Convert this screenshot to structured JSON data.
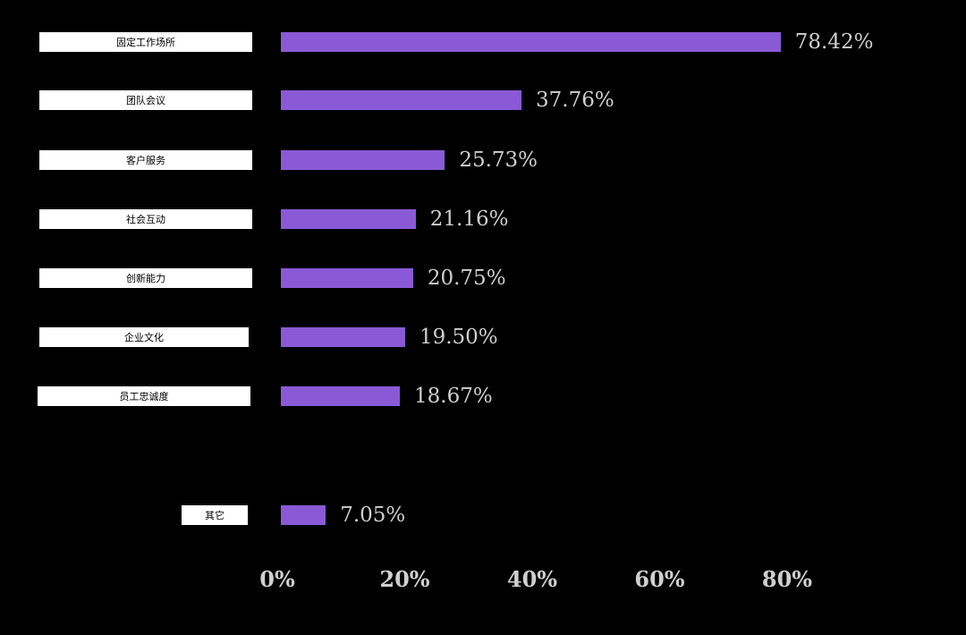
{
  "chart_data": {
    "type": "bar",
    "orientation": "horizontal",
    "categories": [
      "固定工作场所",
      "团队会议",
      "客户服务",
      "社会互动",
      "创新能力",
      "企业文化",
      "员工忠诚度",
      "其它"
    ],
    "values": [
      78.42,
      37.76,
      25.73,
      21.16,
      20.75,
      19.5,
      18.67,
      7.05
    ],
    "value_labels": [
      "78.42%",
      "37.76%",
      "25.73%",
      "21.16%",
      "20.75%",
      "19.50%",
      "18.67%",
      "7.05%"
    ],
    "x_ticks": [
      0,
      20,
      40,
      60,
      80
    ],
    "x_tick_labels": [
      "0%",
      "20%",
      "40%",
      "60%",
      "80%"
    ],
    "xlim": [
      0,
      80
    ],
    "grid": false,
    "colors": {
      "bar": "#8a5ad6",
      "background": "#000000",
      "text": "#cfcfcf",
      "label_box": "#ffffff"
    }
  }
}
